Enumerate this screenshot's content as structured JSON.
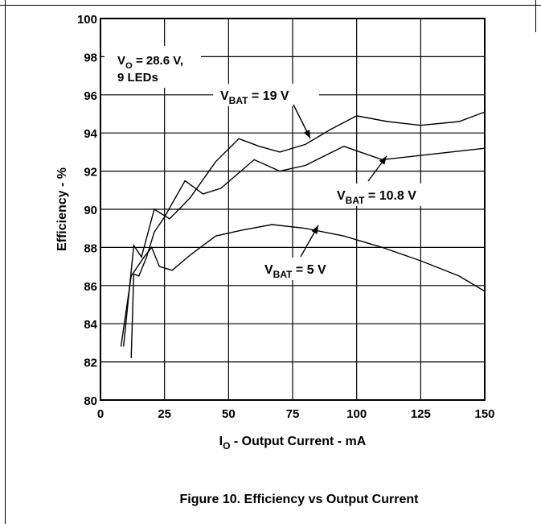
{
  "chart_data": {
    "type": "line",
    "title": "Figure 10. Efficiency vs Output Current",
    "x_label": [
      {
        "text": "I"
      },
      {
        "text": "O",
        "sub": true
      },
      {
        "text": " - Output Current - mA"
      }
    ],
    "y_label": "Efficiency - %",
    "xlim": [
      0,
      150
    ],
    "xticks": [
      0,
      25,
      50,
      75,
      100,
      125,
      150
    ],
    "ylim": [
      80,
      100
    ],
    "yticks": [
      80,
      82,
      84,
      86,
      88,
      90,
      92,
      94,
      96,
      98,
      100
    ],
    "grid": true,
    "series": [
      {
        "name": [
          {
            "text": "V"
          },
          {
            "text": "BAT",
            "sub": true
          },
          {
            "text": " = 19 V"
          }
        ],
        "color": "#000000",
        "x": [
          9,
          13,
          16,
          21,
          27,
          35,
          45,
          54,
          62,
          70,
          80,
          90,
          100,
          112,
          125,
          140,
          150
        ],
        "values": [
          82.8,
          88.1,
          87.5,
          90.0,
          89.5,
          90.6,
          92.5,
          93.7,
          93.3,
          93.0,
          93.4,
          94.2,
          94.9,
          94.6,
          94.4,
          94.6,
          95.1
        ]
      },
      {
        "name": [
          {
            "text": "V"
          },
          {
            "text": "BAT",
            "sub": true
          },
          {
            "text": " = 10.8 V"
          }
        ],
        "color": "#000000",
        "x": [
          12,
          13,
          15,
          18,
          21,
          25,
          33,
          40,
          47,
          60,
          70,
          80,
          95,
          110,
          130,
          150
        ],
        "values": [
          82.2,
          86.6,
          86.5,
          87.5,
          88.8,
          89.6,
          91.5,
          90.8,
          91.1,
          92.6,
          92.0,
          92.3,
          93.3,
          92.6,
          92.9,
          93.2
        ]
      },
      {
        "name": [
          {
            "text": "V"
          },
          {
            "text": "BAT",
            "sub": true
          },
          {
            "text": " = 5 V"
          }
        ],
        "color": "#000000",
        "x": [
          8,
          12,
          17,
          20,
          23,
          28,
          35,
          45,
          55,
          67,
          80,
          95,
          110,
          125,
          140,
          150
        ],
        "values": [
          82.8,
          86.5,
          87.5,
          88.0,
          87.0,
          86.8,
          87.6,
          88.6,
          88.9,
          89.2,
          89.0,
          88.6,
          88.0,
          87.3,
          86.5,
          85.7
        ]
      }
    ],
    "annotations": [
      [
        {
          "text": "V"
        },
        {
          "text": "O",
          "sub": true
        },
        {
          "text": " = 28.6 V,"
        }
      ],
      [
        {
          "text": "9 LEDs"
        }
      ]
    ]
  }
}
